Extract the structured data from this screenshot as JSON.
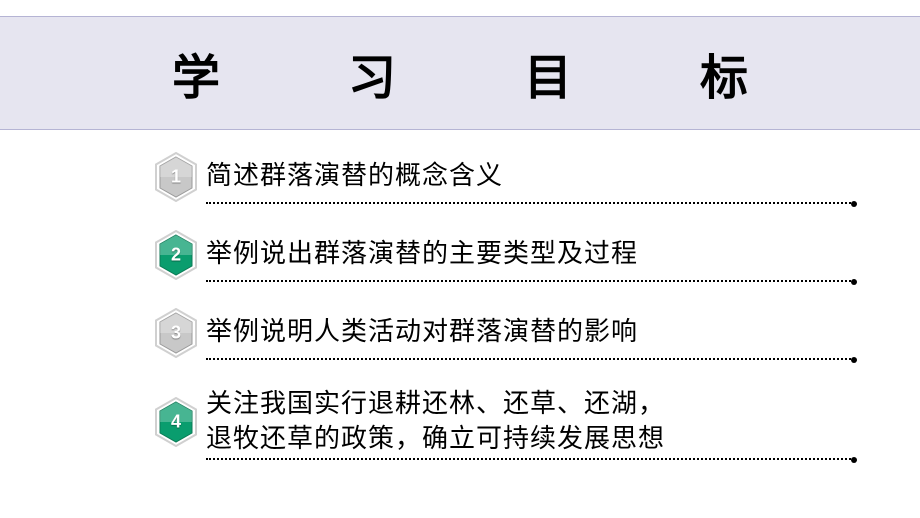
{
  "title": "学　习　目　标",
  "hex_colors": {
    "gray_fill": "#c8c8c8",
    "gray_stroke": "#9a9a9a",
    "green_fill": "#0a9d6e",
    "green_stroke": "#0b7a55",
    "outer_stroke": "#d0d0d0"
  },
  "items": [
    {
      "num": "1",
      "color": "gray",
      "text": "简述群落演替的概念含义",
      "line_width": 648,
      "multiline": false
    },
    {
      "num": "2",
      "color": "green",
      "text": "举例说出群落演替的主要类型及过程",
      "line_width": 648,
      "multiline": false
    },
    {
      "num": "3",
      "color": "gray",
      "text": "举例说明人类活动对群落演替的影响",
      "line_width": 648,
      "multiline": false
    },
    {
      "num": "4",
      "color": "green",
      "text": "关注我国实行退耕还林、还草、还湖，\n退牧还草的政策，确立可持续发展思想",
      "line_width": 648,
      "multiline": true
    }
  ]
}
